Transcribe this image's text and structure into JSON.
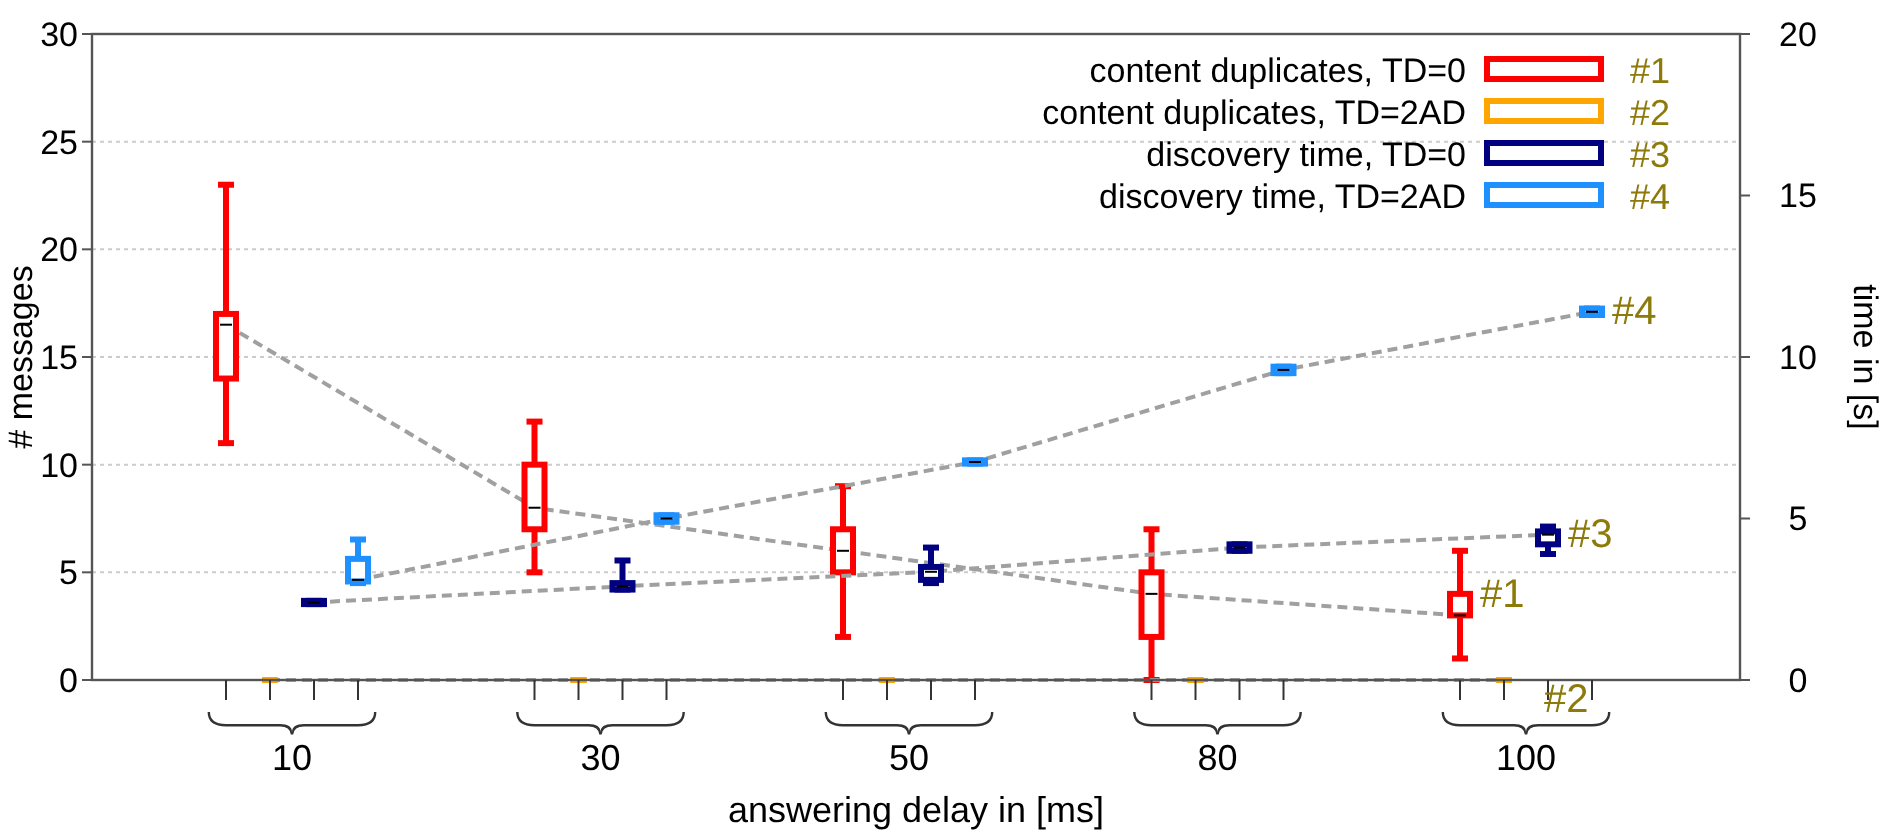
{
  "chart_data": {
    "type": "box",
    "xlabel": "answering delay in [ms]",
    "ylabel": "# messages",
    "y2label": "time in [s]",
    "categories": [
      "10",
      "30",
      "50",
      "80",
      "100"
    ],
    "ylim": [
      0,
      30
    ],
    "yticks": [
      0,
      5,
      10,
      15,
      20,
      25,
      30
    ],
    "y2lim": [
      0,
      20
    ],
    "y2ticks": [
      0,
      5,
      10,
      15,
      20
    ],
    "grid": "y",
    "legend": "top right",
    "annotations": [
      "#1",
      "#2",
      "#3",
      "#4"
    ],
    "series": [
      {
        "name": "content duplicates, TD=0",
        "color": "#ff0000",
        "type": "box",
        "boxes": [
          {
            "low": 11,
            "q1": 14,
            "median": 16.5,
            "q3": 17,
            "high": 23
          },
          {
            "low": 5,
            "q1": 7,
            "median": 8,
            "q3": 10,
            "high": 12
          },
          {
            "low": 2,
            "q1": 5,
            "median": 6,
            "q3": 7,
            "high": 9
          },
          {
            "low": 0,
            "q1": 2,
            "median": 4,
            "q3": 5,
            "high": 7
          },
          {
            "low": 1,
            "q1": 3,
            "median": 3,
            "q3": 4,
            "high": 6
          }
        ]
      },
      {
        "name": "content duplicates, TD=2AD",
        "color": "#ffa500",
        "type": "box",
        "boxes": [
          {
            "low": 0,
            "q1": 0,
            "median": 0,
            "q3": 0,
            "high": 0
          },
          {
            "low": 0,
            "q1": 0,
            "median": 0,
            "q3": 0,
            "high": 0
          },
          {
            "low": 0,
            "q1": 0,
            "median": 0,
            "q3": 0,
            "high": 0
          },
          {
            "low": 0,
            "q1": 0,
            "median": 0,
            "q3": 0,
            "high": 0
          },
          {
            "low": 0,
            "q1": 0,
            "median": 0,
            "q3": 0,
            "high": 0
          }
        ]
      },
      {
        "name": "discovery time, TD=0",
        "color": "#000080",
        "type": "box",
        "axis": "y2",
        "boxes": [
          {
            "low": 2.35,
            "q1": 2.35,
            "median": 2.4,
            "q3": 2.45,
            "high": 2.45
          },
          {
            "low": 2.8,
            "q1": 2.8,
            "median": 2.9,
            "q3": 3.0,
            "high": 3.7
          },
          {
            "low": 3.0,
            "q1": 3.1,
            "median": 3.35,
            "q3": 3.5,
            "high": 4.1
          },
          {
            "low": 4.0,
            "q1": 4.0,
            "median": 4.1,
            "q3": 4.2,
            "high": 4.2
          },
          {
            "low": 3.9,
            "q1": 4.2,
            "median": 4.5,
            "q3": 4.6,
            "high": 4.75
          }
        ]
      },
      {
        "name": "discovery time, TD=2AD",
        "color": "#1e90ff",
        "type": "box",
        "axis": "y2",
        "boxes": [
          {
            "low": 3.0,
            "q1": 3.05,
            "median": 3.1,
            "q3": 3.75,
            "high": 4.35
          },
          {
            "low": 4.9,
            "q1": 4.9,
            "median": 5.0,
            "q3": 5.1,
            "high": 5.1
          },
          {
            "low": 6.7,
            "q1": 6.7,
            "median": 6.75,
            "q3": 6.8,
            "high": 6.8
          },
          {
            "low": 9.5,
            "q1": 9.5,
            "median": 9.6,
            "q3": 9.7,
            "high": 9.7
          },
          {
            "low": 11.3,
            "q1": 11.3,
            "median": 11.4,
            "q3": 11.5,
            "high": 11.5
          }
        ]
      }
    ]
  }
}
